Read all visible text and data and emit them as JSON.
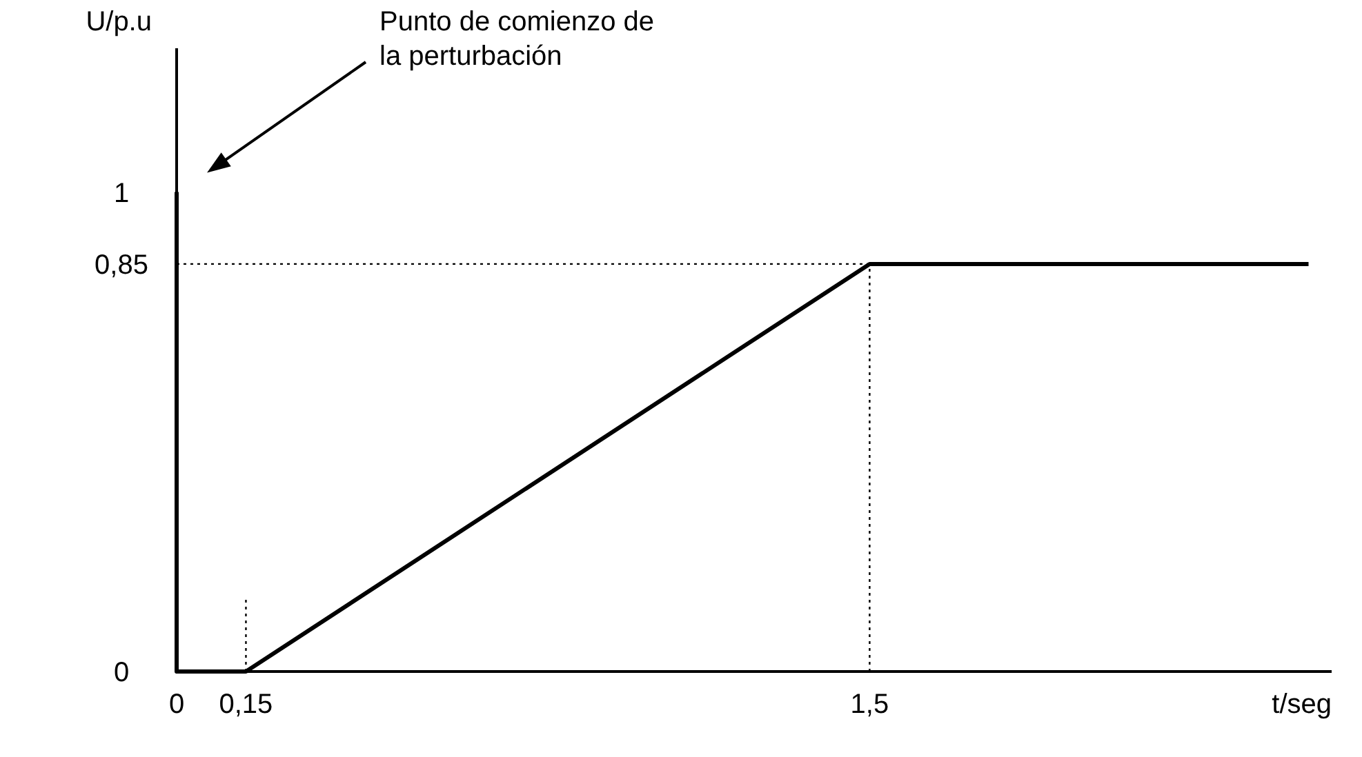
{
  "chart_data": {
    "type": "line",
    "xlabel": "t/seg",
    "ylabel": "U/p.u",
    "x": [
      0,
      0,
      0.15,
      1.5,
      2.45
    ],
    "series": [
      {
        "color": "#000000",
        "values": [
          1,
          0,
          0,
          0.85,
          0.85
        ]
      }
    ],
    "xlim": [
      0,
      2.5
    ],
    "ylim": [
      0,
      1.3
    ],
    "xticks": [
      0,
      {
        "value": 0.15,
        "label": "0,15"
      },
      {
        "value": 1.5,
        "label": "1,5"
      }
    ],
    "yticks": [
      0,
      {
        "value": 0.85,
        "label": "0,85"
      },
      1
    ],
    "ref_lines": [
      {
        "axis": "y",
        "value": 0.85,
        "line_style": "dotted"
      },
      {
        "axis": "x",
        "value": 0.15,
        "line_style": "dotted"
      },
      {
        "axis": "x",
        "value": 1.5,
        "line_style": "dotted"
      }
    ],
    "annotations": [
      "Punto de comienzo de la perturbación"
    ],
    "grid": false,
    "marker": "none",
    "line_style": "solid"
  }
}
